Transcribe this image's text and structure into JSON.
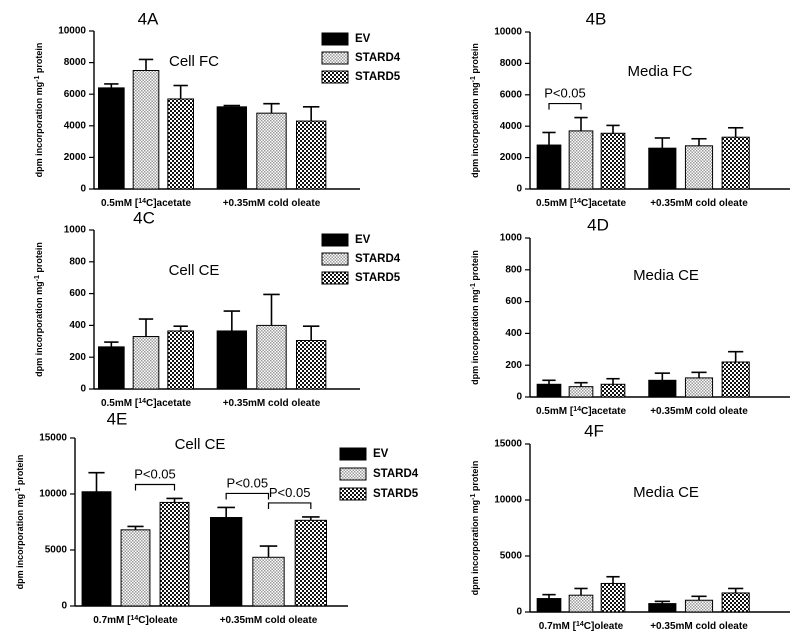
{
  "ylabel_parts": {
    "prefix": "dpm incorporation mg",
    "sup": "-1",
    "suffix": " protein"
  },
  "category_labels": {
    "acetate": {
      "prefix": "0.5mM [",
      "sup": "14",
      "suffix": "C]acetate"
    },
    "oleate_label": {
      "prefix": "0.7mM [",
      "sup": "14",
      "suffix": "C]oleate"
    },
    "cold": "+0.35mM cold oleate"
  },
  "colors": {
    "EV": "#000000",
    "STARD4_dot": "#9a9a9a",
    "STARD5_dot": "#111111",
    "pattern_bg": "#ffffff"
  },
  "chart_data": [
    {
      "panel": "4A",
      "type": "bar",
      "title": "Cell FC",
      "categories": [
        "0.5mM [14C]acetate",
        "+0.35mM cold oleate"
      ],
      "ylim": [
        0,
        10000
      ],
      "yticks": [
        0,
        2000,
        4000,
        6000,
        8000,
        10000
      ],
      "legend": [
        "EV",
        "STARD4",
        "STARD5"
      ],
      "series": [
        {
          "name": "EV",
          "values": [
            6400,
            5200
          ],
          "errors": [
            250,
            80
          ]
        },
        {
          "name": "STARD4",
          "values": [
            7500,
            4800
          ],
          "errors": [
            700,
            600
          ]
        },
        {
          "name": "STARD5",
          "values": [
            5700,
            4300
          ],
          "errors": [
            850,
            900
          ]
        }
      ],
      "significance": []
    },
    {
      "panel": "4B",
      "type": "bar",
      "title": "Media FC",
      "categories": [
        "0.5mM [14C]acetate",
        "+0.35mM cold oleate"
      ],
      "ylim": [
        0,
        10000
      ],
      "yticks": [
        0,
        2000,
        4000,
        6000,
        8000,
        10000
      ],
      "legend": [],
      "series": [
        {
          "name": "EV",
          "values": [
            2800,
            2600
          ],
          "errors": [
            800,
            650
          ]
        },
        {
          "name": "STARD4",
          "values": [
            3700,
            2750
          ],
          "errors": [
            850,
            450
          ]
        },
        {
          "name": "STARD5",
          "values": [
            3550,
            3300
          ],
          "errors": [
            500,
            600
          ]
        }
      ],
      "significance": [
        {
          "label": "P<0.05",
          "group": 0,
          "from": 0,
          "to": 1
        }
      ]
    },
    {
      "panel": "4C",
      "type": "bar",
      "title": "Cell CE",
      "categories": [
        "0.5mM [14C]acetate",
        "+0.35mM cold oleate"
      ],
      "ylim": [
        0,
        1000
      ],
      "yticks": [
        0,
        200,
        400,
        600,
        800,
        1000
      ],
      "legend": [
        "EV",
        "STARD4",
        "STARD5"
      ],
      "series": [
        {
          "name": "EV",
          "values": [
            265,
            365
          ],
          "errors": [
            30,
            125
          ]
        },
        {
          "name": "STARD4",
          "values": [
            330,
            400
          ],
          "errors": [
            110,
            195
          ]
        },
        {
          "name": "STARD5",
          "values": [
            365,
            305
          ],
          "errors": [
            30,
            90
          ]
        }
      ],
      "significance": []
    },
    {
      "panel": "4D",
      "type": "bar",
      "title": "Media CE",
      "categories": [
        "0.5mM [14C]acetate",
        "+0.35mM cold oleate"
      ],
      "ylim": [
        0,
        1000
      ],
      "yticks": [
        0,
        200,
        400,
        600,
        800,
        1000
      ],
      "legend": [],
      "series": [
        {
          "name": "EV",
          "values": [
            80,
            105
          ],
          "errors": [
            25,
            45
          ]
        },
        {
          "name": "STARD4",
          "values": [
            65,
            120
          ],
          "errors": [
            25,
            35
          ]
        },
        {
          "name": "STARD5",
          "values": [
            80,
            220
          ],
          "errors": [
            35,
            65
          ]
        }
      ],
      "significance": []
    },
    {
      "panel": "4E",
      "type": "bar",
      "title": "Cell CE",
      "categories": [
        "0.7mM [14C]oleate",
        "+0.35mM cold oleate"
      ],
      "ylim": [
        0,
        15000
      ],
      "yticks": [
        0,
        5000,
        10000,
        15000
      ],
      "legend": [
        "EV",
        "STARD4",
        "STARD5"
      ],
      "series": [
        {
          "name": "EV",
          "values": [
            10200,
            7900
          ],
          "errors": [
            1700,
            900
          ]
        },
        {
          "name": "STARD4",
          "values": [
            6800,
            4350
          ],
          "errors": [
            300,
            1000
          ]
        },
        {
          "name": "STARD5",
          "values": [
            9250,
            7650
          ],
          "errors": [
            350,
            300
          ]
        }
      ],
      "significance": [
        {
          "label": "P<0.05",
          "group": 0,
          "from": 1,
          "to": 2
        },
        {
          "label": "P<0.05",
          "group": 1,
          "from": 0,
          "to": 1
        },
        {
          "label": "P<0.05",
          "group": 1,
          "from": 1,
          "to": 2
        }
      ]
    },
    {
      "panel": "4F",
      "type": "bar",
      "title": "Media CE",
      "categories": [
        "0.7mM [14C]oleate",
        "+0.35mM cold oleate"
      ],
      "ylim": [
        0,
        15000
      ],
      "yticks": [
        0,
        5000,
        10000,
        15000
      ],
      "legend": [],
      "series": [
        {
          "name": "EV",
          "values": [
            1200,
            750
          ],
          "errors": [
            350,
            200
          ]
        },
        {
          "name": "STARD4",
          "values": [
            1500,
            1050
          ],
          "errors": [
            600,
            350
          ]
        },
        {
          "name": "STARD5",
          "values": [
            2550,
            1700
          ],
          "errors": [
            600,
            400
          ]
        }
      ],
      "significance": []
    }
  ]
}
